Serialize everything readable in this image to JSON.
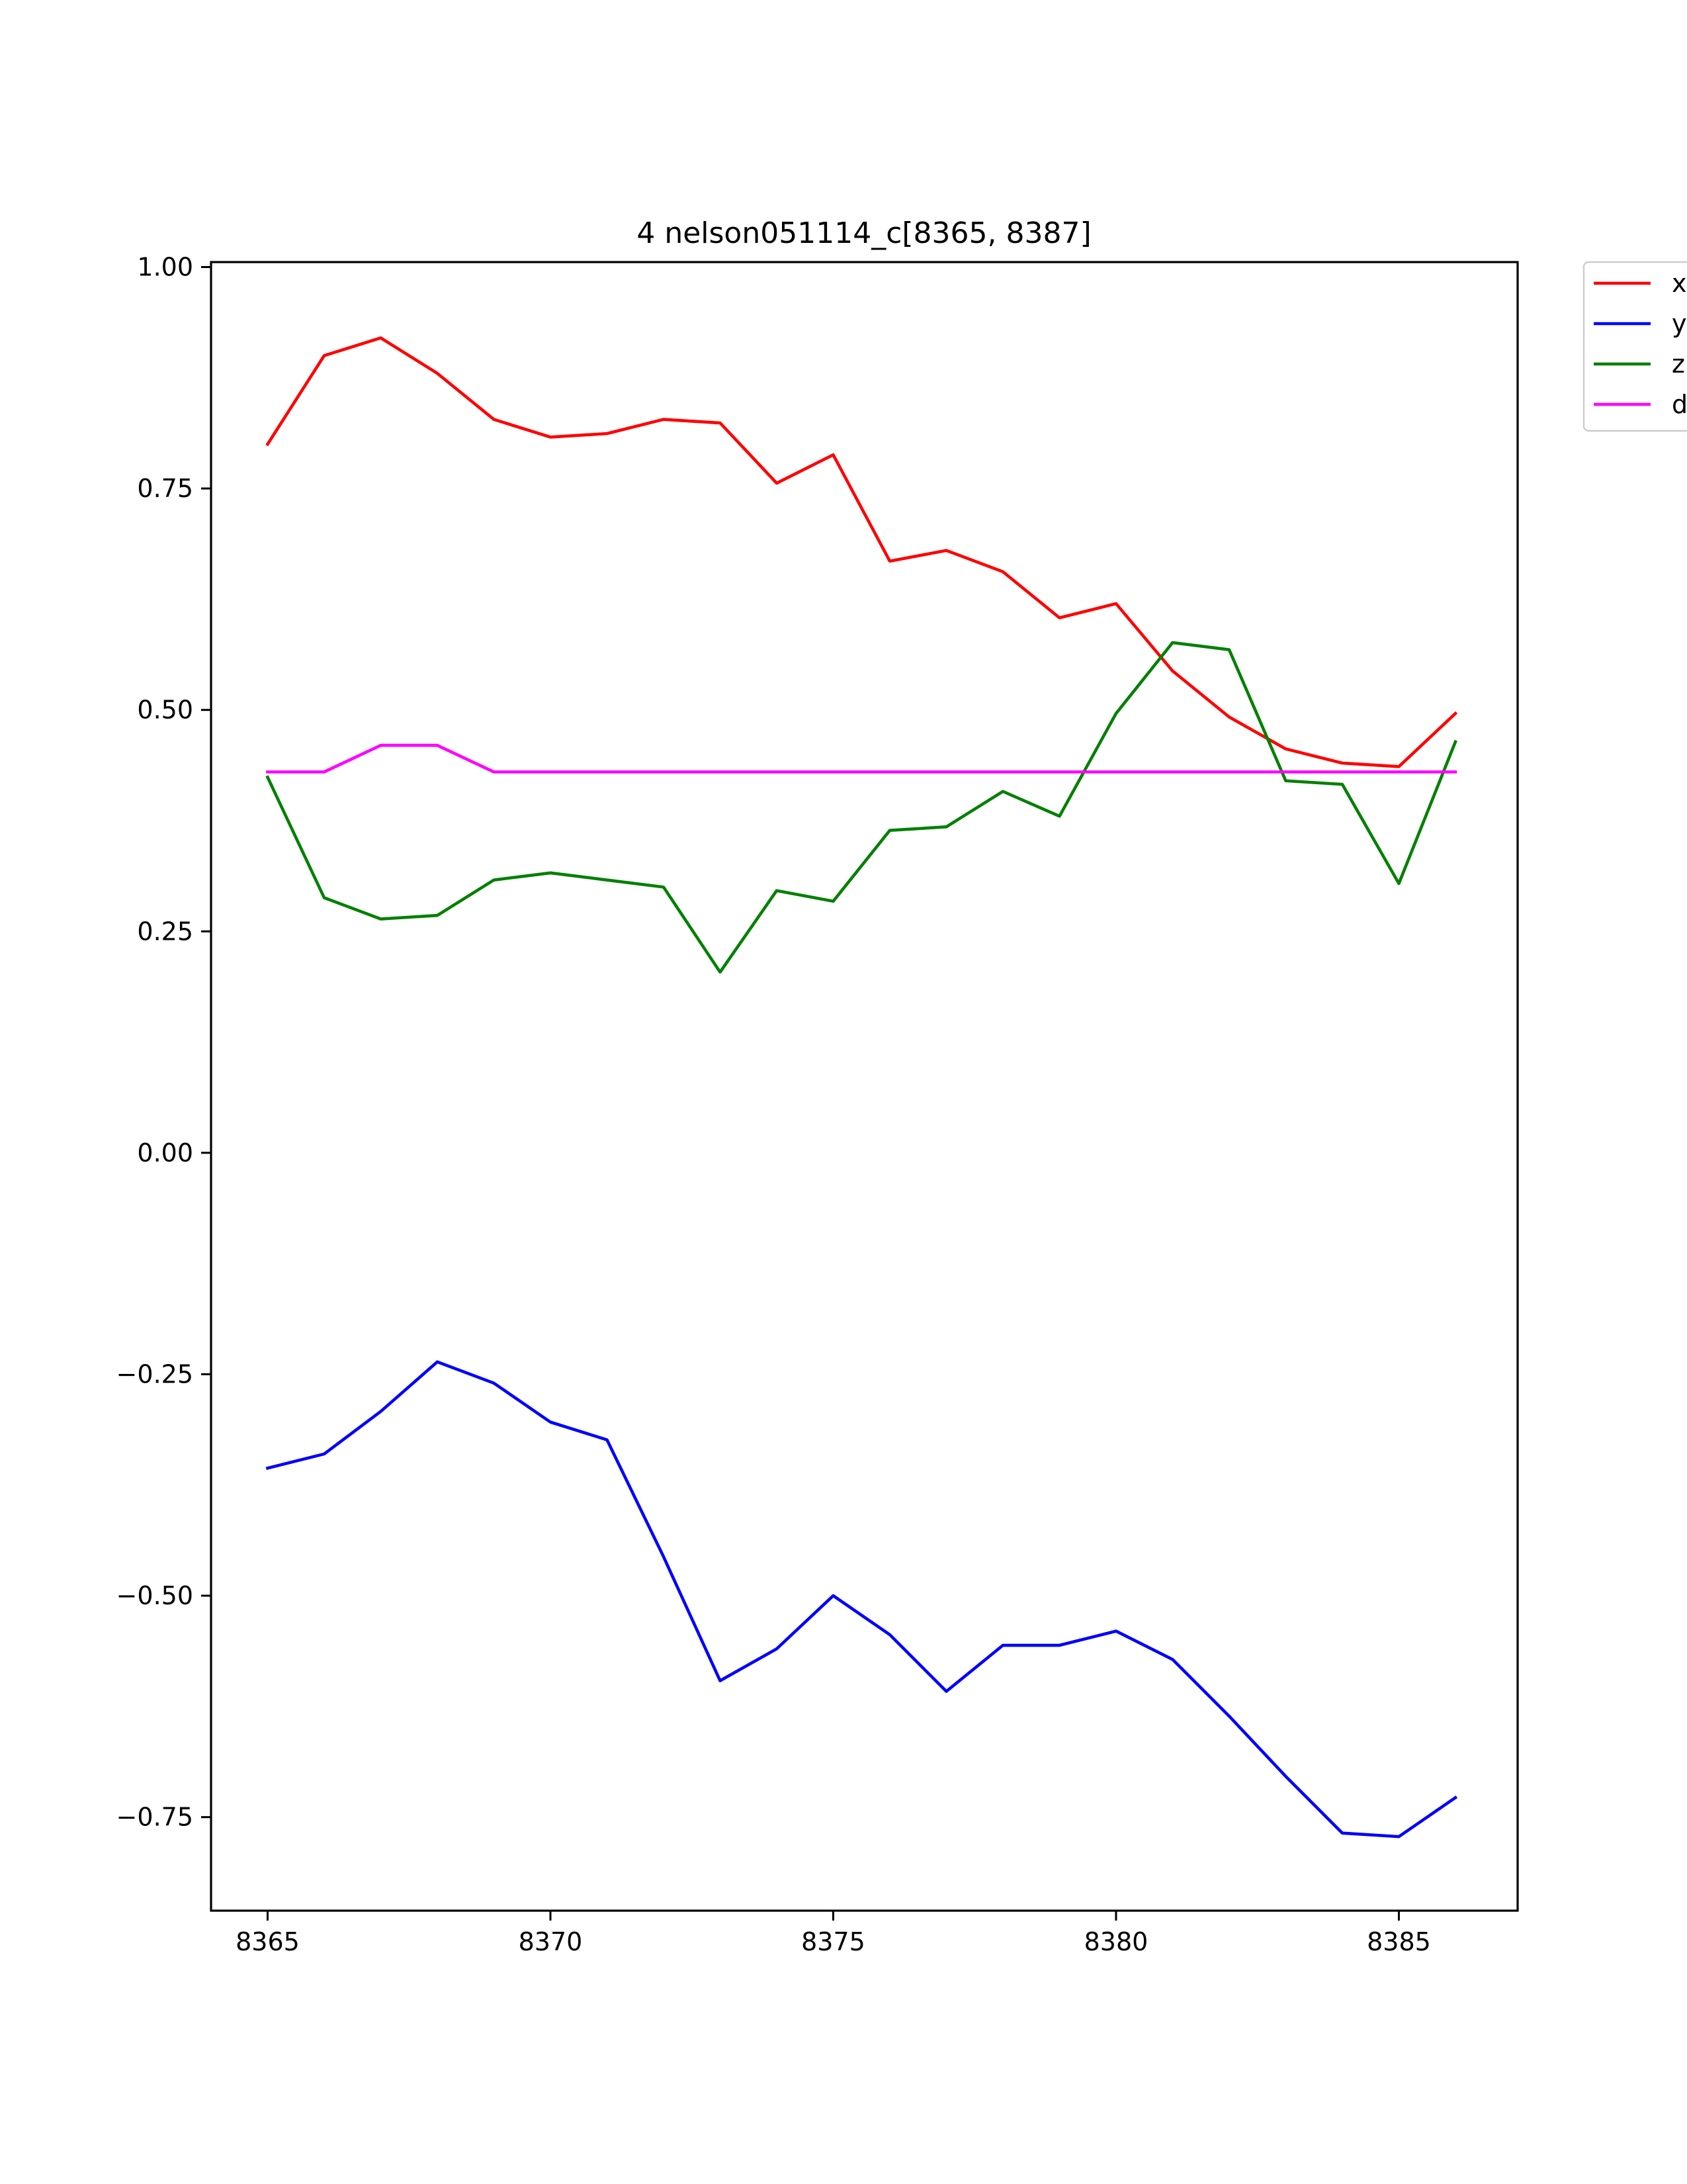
{
  "chart_data": {
    "type": "line",
    "title": "4 nelson051114_c[8365, 8387]",
    "xlabel": "",
    "ylabel": "",
    "xlim": [
      8364.0,
      8387.1
    ],
    "ylim": [
      -0.8556,
      1.0056
    ],
    "xticks": [
      8365,
      8370,
      8375,
      8380,
      8385
    ],
    "xtick_labels": [
      "8365",
      "8370",
      "8375",
      "8380",
      "8385"
    ],
    "yticks": [
      1.0,
      0.75,
      0.5,
      0.25,
      0.0,
      -0.25,
      -0.5,
      -0.75
    ],
    "ytick_labels": [
      "1.00",
      "0.75",
      "0.50",
      "0.25",
      "0.00",
      "−0.25",
      "−0.50",
      "−0.75"
    ],
    "legend_position": "upper-right, outside axes (partially cut off)",
    "grid": false,
    "x": [
      8365,
      8366,
      8367,
      8368,
      8369,
      8370,
      8371,
      8372,
      8373,
      8374,
      8375,
      8376,
      8377,
      8378,
      8379,
      8380,
      8381,
      8382,
      8383,
      8384,
      8385,
      8386
    ],
    "series": [
      {
        "name": "x",
        "color": "#ff0000",
        "values": [
          0.8,
          0.9,
          0.92,
          0.88,
          0.828,
          0.808,
          0.812,
          0.828,
          0.824,
          0.756,
          0.788,
          0.668,
          0.68,
          0.656,
          0.604,
          0.62,
          0.544,
          0.492,
          0.456,
          0.44,
          0.436,
          0.496
        ]
      },
      {
        "name": "y",
        "color": "#0000ff",
        "values": [
          -0.356,
          -0.34,
          -0.292,
          -0.236,
          -0.26,
          -0.304,
          -0.324,
          -0.456,
          -0.596,
          -0.56,
          -0.5,
          -0.544,
          -0.608,
          -0.556,
          -0.556,
          -0.54,
          -0.572,
          -0.636,
          -0.704,
          -0.768,
          -0.772,
          -0.728
        ]
      },
      {
        "name": "z",
        "color": "#008000",
        "values": [
          0.424,
          0.288,
          0.264,
          0.268,
          0.308,
          0.316,
          0.308,
          0.3,
          0.204,
          0.296,
          0.284,
          0.364,
          0.368,
          0.408,
          0.38,
          0.496,
          0.576,
          0.568,
          0.42,
          0.416,
          0.304,
          0.464
        ]
      },
      {
        "name": "d",
        "color": "#ff00ff",
        "values": [
          0.43,
          0.43,
          0.46,
          0.46,
          0.43,
          0.43,
          0.43,
          0.43,
          0.43,
          0.43,
          0.43,
          0.43,
          0.43,
          0.43,
          0.43,
          0.43,
          0.43,
          0.43,
          0.43,
          0.43,
          0.43,
          0.43
        ]
      }
    ]
  }
}
